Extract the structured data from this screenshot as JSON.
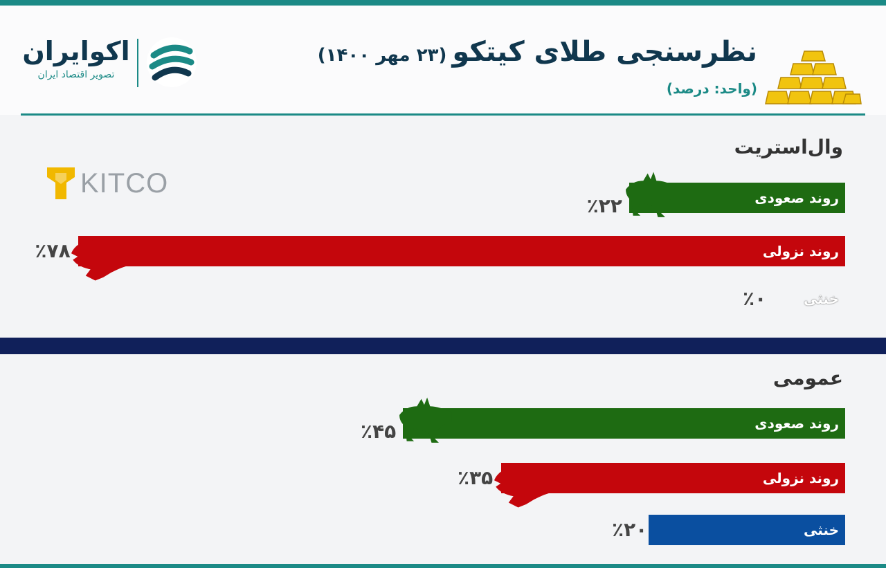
{
  "brand": {
    "name": "اکوایران",
    "tagline": "تصویر اقتصاد ایران"
  },
  "header": {
    "title": "نظرسنجی طلای کیتکو",
    "date": "(۲۳ مهر ۱۴۰۰)",
    "unit": "(واحد: درصد)"
  },
  "sources": {
    "kitco_logo_text": "KITCO"
  },
  "labels": {
    "up": "روند صعودی",
    "down": "روند نزولی",
    "neutral": "خنثی"
  },
  "colors": {
    "up": "#1e6b12",
    "down": "#c4060c",
    "neutral": "#0a4fa0",
    "accent": "#1b8a86",
    "navy": "#10205a"
  },
  "icons": {
    "up": "bull-icon",
    "down": "bear-icon"
  },
  "chart_data": [
    {
      "type": "bar",
      "title": "وال‌استریت",
      "categories": [
        "روند صعودی",
        "روند نزولی",
        "خنثی"
      ],
      "values": [
        22,
        78,
        0
      ],
      "value_labels": [
        "٪۲۲",
        "٪۷۸",
        "٪۰"
      ],
      "orientation": "horizontal-rtl",
      "xlim": [
        0,
        100
      ]
    },
    {
      "type": "bar",
      "title": "عمومی",
      "categories": [
        "روند صعودی",
        "روند نزولی",
        "خنثی"
      ],
      "values": [
        45,
        35,
        20
      ],
      "value_labels": [
        "٪۴۵",
        "٪۳۵",
        "٪۲۰"
      ],
      "orientation": "horizontal-rtl",
      "xlim": [
        0,
        100
      ]
    }
  ]
}
